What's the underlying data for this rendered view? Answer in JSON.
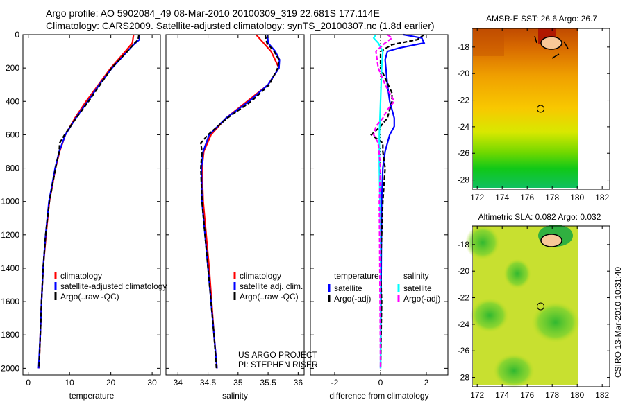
{
  "title_line1": "Argo profile: AO 5902084_49 08-Mar-2010 20100309_319 22.681S 177.114E",
  "title_line2": "Climatology: CARS2009. Satellite-adjusted climatology: synTS_20100307.nc (1.8d earlier)",
  "project_line1": "US ARGO PROJECT",
  "project_line2": "PI: STEPHEN RISER",
  "credit": "CSIRO 13-Mar-2010 10:31:40",
  "chart_data": [
    {
      "type": "line",
      "xlabel": "temperature",
      "ylabel": "",
      "xlim": [
        -1.3,
        32
      ],
      "ylim": [
        2040,
        0
      ],
      "xticks": [
        0,
        10,
        20,
        30
      ],
      "yticks": [
        0,
        200,
        400,
        600,
        800,
        1000,
        1200,
        1400,
        1600,
        1800,
        2000
      ],
      "legend": [
        "climatology",
        "satellite-adjusted climatology",
        "Argo(..raw -QC)"
      ],
      "series": [
        {
          "name": "climatology",
          "color": "#ff0000",
          "dash": false,
          "depth": [
            0,
            50,
            100,
            200,
            300,
            400,
            500,
            600,
            700,
            800,
            1000,
            1200,
            1400,
            1600,
            1800,
            2000
          ],
          "values": [
            25.5,
            25.2,
            23.5,
            20,
            17,
            14,
            11.3,
            9,
            7.6,
            6.6,
            5.1,
            4.3,
            3.6,
            3.2,
            2.9,
            2.6
          ]
        },
        {
          "name": "satellite-adjusted climatology",
          "color": "#0000ff",
          "dash": false,
          "depth": [
            0,
            30,
            60,
            100,
            200,
            300,
            400,
            500,
            600,
            700,
            800,
            1000,
            1200,
            1400,
            1600,
            1800,
            2000
          ],
          "values": [
            26.9,
            26.9,
            25.5,
            24,
            20.3,
            17.2,
            14.4,
            11.5,
            9,
            7.5,
            6.5,
            5,
            4.2,
            3.6,
            3.2,
            2.9,
            2.5
          ]
        },
        {
          "name": "Argo(..raw -QC)",
          "color": "#000000",
          "dash": true,
          "depth": [
            0,
            30,
            60,
            100,
            200,
            300,
            400,
            500,
            600,
            650,
            700,
            800,
            1000,
            1200,
            1400,
            1600,
            1800,
            2000
          ],
          "values": [
            26.8,
            26.6,
            25.4,
            24,
            20.2,
            17.4,
            14.6,
            11.6,
            8.8,
            7.6,
            7.5,
            6.6,
            5.1,
            4.2,
            3.6,
            3.2,
            2.9,
            2.6
          ]
        }
      ]
    },
    {
      "type": "line",
      "xlabel": "salinity",
      "xlim": [
        33.8,
        36.1
      ],
      "ylim": [
        2040,
        0
      ],
      "xticks": [
        34,
        34.5,
        35,
        35.5,
        36
      ],
      "legend": [
        "climatology",
        "satellite adj. clim.",
        "Argo(..raw -QC)"
      ],
      "series": [
        {
          "name": "climatology",
          "color": "#ff0000",
          "dash": false,
          "depth": [
            0,
            100,
            200,
            300,
            400,
            500,
            600,
            700,
            800,
            1000,
            1400,
            1800,
            2000
          ],
          "values": [
            35.3,
            35.55,
            35.68,
            35.5,
            35.15,
            34.8,
            34.55,
            34.43,
            34.4,
            34.42,
            34.52,
            34.6,
            34.65
          ]
        },
        {
          "name": "satellite adj. clim.",
          "color": "#0000ff",
          "dash": false,
          "depth": [
            0,
            50,
            100,
            150,
            200,
            300,
            400,
            500,
            600,
            700,
            800,
            1000,
            1400,
            1800,
            2000
          ],
          "values": [
            35.49,
            35.5,
            35.62,
            35.69,
            35.68,
            35.5,
            35.18,
            34.8,
            34.52,
            34.42,
            34.39,
            34.4,
            34.5,
            34.6,
            34.65
          ]
        },
        {
          "name": "Argo(..raw -QC)",
          "color": "#000000",
          "dash": true,
          "depth": [
            0,
            50,
            100,
            150,
            200,
            300,
            400,
            500,
            600,
            650,
            700,
            800,
            1000,
            1400,
            1800,
            2000
          ],
          "values": [
            35.45,
            35.48,
            35.6,
            35.68,
            35.66,
            35.52,
            35.22,
            34.82,
            34.5,
            34.38,
            34.4,
            34.38,
            34.4,
            34.5,
            34.6,
            34.64
          ]
        }
      ]
    },
    {
      "type": "line",
      "xlabel": "difference from climatology",
      "xlim": [
        -3.06,
        2.94
      ],
      "ylim": [
        2040,
        0
      ],
      "xticks": [
        -2,
        0,
        2
      ],
      "legend_temperature_title": "temperature",
      "legend_salinity_title": "salinity",
      "legend": [
        "satellite",
        "Argo(-adj)",
        "satellite",
        "Argo(-adj)"
      ],
      "series": [
        {
          "name": "temperature satellite",
          "color": "#0000ff",
          "dash": false,
          "depth": [
            0,
            20,
            50,
            80,
            100,
            150,
            300,
            400,
            500,
            550,
            600,
            700,
            800,
            1000,
            2000
          ],
          "values": [
            1.0,
            1.8,
            1.9,
            0.8,
            0.3,
            0.2,
            0.3,
            0.4,
            0.6,
            0.6,
            0.4,
            0.2,
            0.1,
            0.05,
            0
          ]
        },
        {
          "name": "temperature Argo(-adj)",
          "color": "#000000",
          "dash": true,
          "depth": [
            0,
            30,
            60,
            100,
            200,
            350,
            400,
            500,
            550,
            600,
            650,
            700,
            800,
            1000,
            1400,
            1600,
            2000
          ],
          "values": [
            1.9,
            1.6,
            0.5,
            0,
            0,
            0.5,
            0.5,
            0.3,
            0,
            -0.4,
            0.1,
            0.1,
            0.2,
            0.1,
            0,
            0.05,
            0
          ]
        },
        {
          "name": "salinity satellite",
          "color": "#00ffff",
          "dash": false,
          "depth": [
            0,
            20,
            50,
            100,
            200,
            400,
            600,
            800,
            1200,
            2000
          ],
          "values": [
            -0.2,
            -0.3,
            -0.1,
            0.1,
            0.05,
            0,
            -0.05,
            -0.05,
            0,
            0
          ]
        },
        {
          "name": "salinity Argo(-adj)",
          "color": "#ff00ff",
          "dash": true,
          "depth": [
            0,
            20,
            50,
            100,
            200,
            300,
            400,
            450,
            500,
            550,
            600,
            650,
            800,
            1000,
            2000
          ],
          "values": [
            0.3,
            0.5,
            0.2,
            -0.2,
            -0.1,
            0.2,
            0.6,
            0.3,
            0.1,
            -0.2,
            -0.3,
            -0.1,
            0,
            -0.05,
            0
          ]
        }
      ]
    },
    {
      "type": "heatmap",
      "title": "AMSR-E SST: 26.6 Argo: 26.7",
      "xlim": [
        171.6,
        182.6
      ],
      "ylim": [
        -28.7,
        -16.6
      ],
      "xticks": [
        172,
        174,
        176,
        178,
        180,
        182
      ],
      "yticks": [
        -18,
        -20,
        -22,
        -24,
        -26,
        -28
      ],
      "ytick_labels": [
        "-18",
        "-20",
        "-22",
        "-24",
        "-26",
        "-28"
      ],
      "marker": {
        "lon": 177.114,
        "lat": -22.681
      }
    },
    {
      "type": "heatmap",
      "title": "Altimetric SLA: 0.082 Argo: 0.032",
      "xlim": [
        171.6,
        182.6
      ],
      "ylim": [
        -28.7,
        -16.6
      ],
      "xticks": [
        172,
        174,
        176,
        178,
        180,
        182
      ],
      "yticks": [
        -18,
        -20,
        -22,
        -24,
        -26,
        -28
      ],
      "ytick_labels": [
        "-18",
        "-20",
        "-22",
        "-24",
        "-26",
        "-28"
      ],
      "marker": {
        "lon": 177.114,
        "lat": -22.681
      }
    }
  ]
}
